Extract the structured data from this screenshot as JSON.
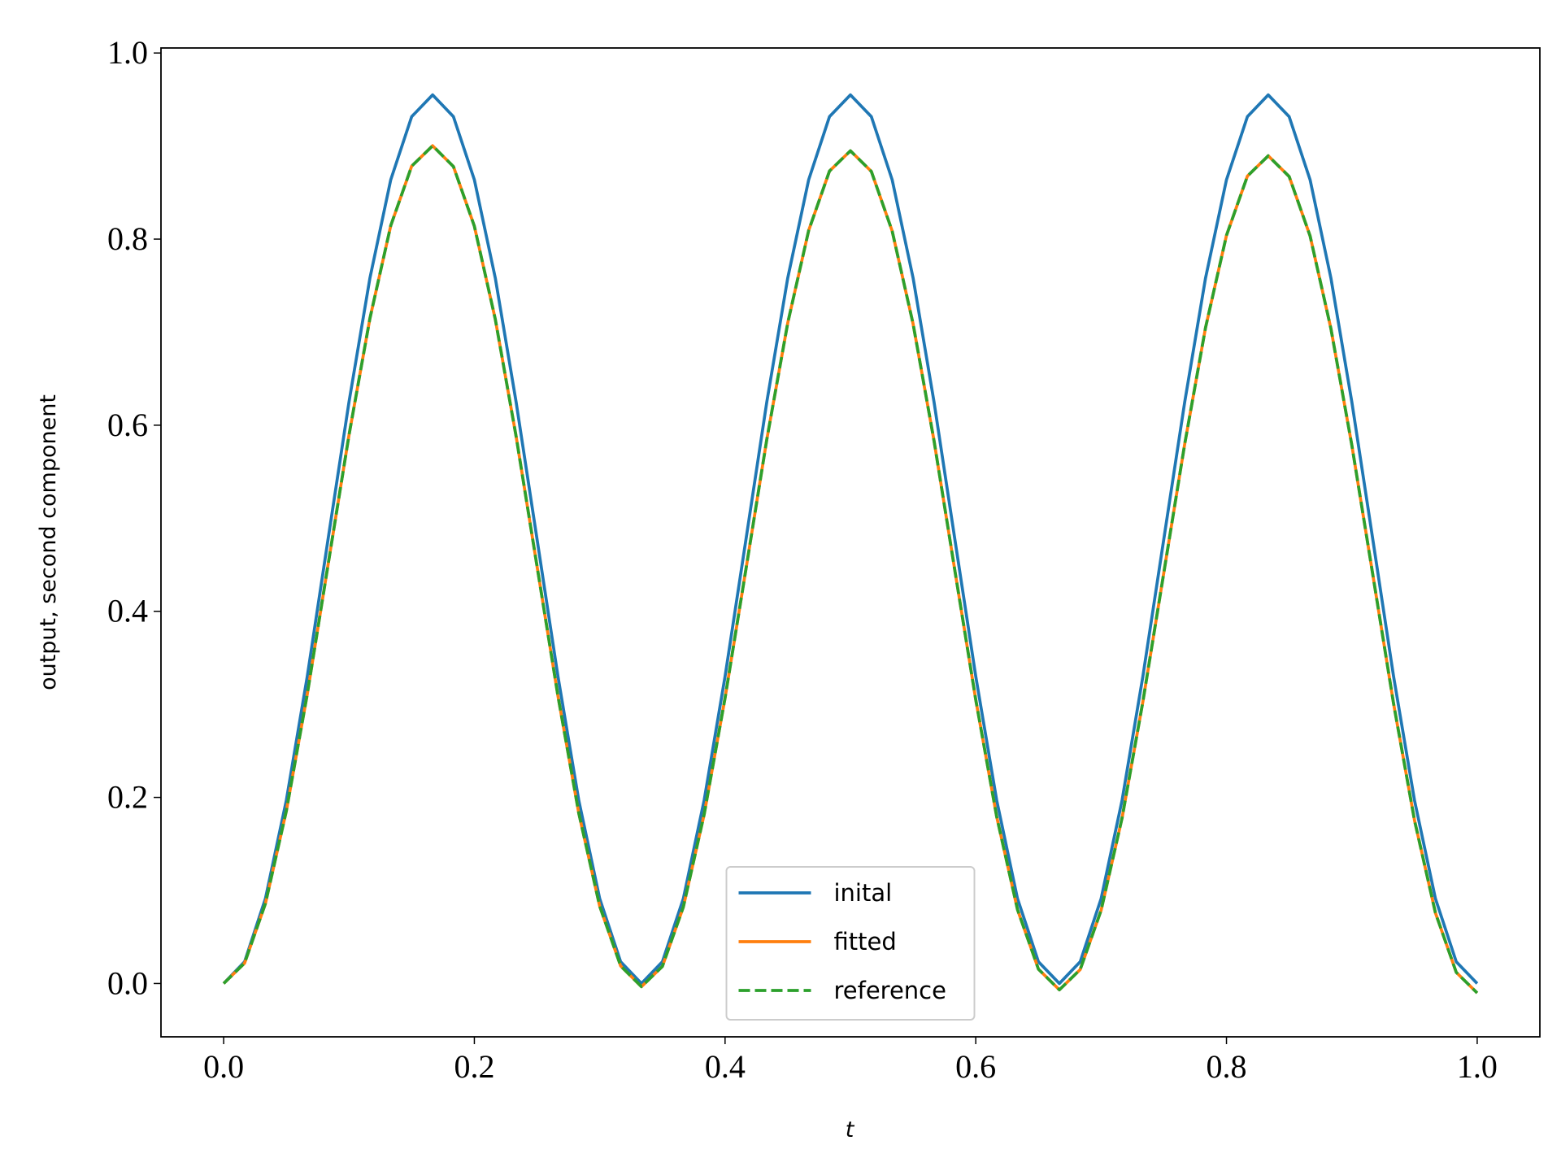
{
  "chart_data": {
    "type": "line",
    "xlabel": "t",
    "ylabel": "output, second component",
    "xlim": [
      -0.05,
      1.05
    ],
    "ylim": [
      -0.0573,
      1.0054
    ],
    "xticks": [
      {
        "value": 0,
        "label": "0.0"
      },
      0.2,
      0.4,
      0.6,
      0.8,
      {
        "value": 1,
        "label": "1.0"
      }
    ],
    "yticks": [
      {
        "value": 0,
        "label": "0.0"
      },
      0.2,
      0.4,
      0.6,
      0.8,
      {
        "value": 1,
        "label": "1.0"
      }
    ],
    "legend": "lower center",
    "x": [
      0,
      0.0167,
      0.0333,
      0.05,
      0.0667,
      0.0833,
      0.1,
      0.1167,
      0.1333,
      0.15,
      0.1667,
      0.1833,
      0.2,
      0.2167,
      0.2333,
      0.25,
      0.2667,
      0.2833,
      0.3,
      0.3167,
      0.3333,
      0.35,
      0.3667,
      0.3833,
      0.4,
      0.4167,
      0.4333,
      0.45,
      0.4667,
      0.4833,
      0.5,
      0.5167,
      0.5333,
      0.55,
      0.5667,
      0.5833,
      0.6,
      0.6167,
      0.6333,
      0.65,
      0.6667,
      0.6833,
      0.7,
      0.7167,
      0.7333,
      0.75,
      0.7667,
      0.7833,
      0.8,
      0.8167,
      0.8333,
      0.85,
      0.8667,
      0.8833,
      0.9,
      0.9167,
      0.9333,
      0.95,
      0.9667,
      0.9833,
      1
    ],
    "series": [
      {
        "name": "inital",
        "color": "#1f77b4",
        "dash": "solid",
        "values": [
          0,
          0.0234,
          0.0912,
          0.1968,
          0.33,
          0.4775,
          0.625,
          0.7582,
          0.8638,
          0.9316,
          0.955,
          0.9316,
          0.8638,
          0.7582,
          0.625,
          0.4775,
          0.33,
          0.1968,
          0.0912,
          0.0234,
          0,
          0.0234,
          0.0912,
          0.1968,
          0.33,
          0.4775,
          0.625,
          0.7582,
          0.8638,
          0.9316,
          0.955,
          0.9316,
          0.8638,
          0.7582,
          0.625,
          0.4775,
          0.33,
          0.1968,
          0.0912,
          0.0234,
          0,
          0.0234,
          0.0912,
          0.1968,
          0.33,
          0.4775,
          0.625,
          0.7582,
          0.8638,
          0.9316,
          0.955,
          0.9316,
          0.8638,
          0.7582,
          0.625,
          0.4775,
          0.33,
          0.1968,
          0.0912,
          0.0234,
          0
        ]
      },
      {
        "name": "fitted",
        "color": "#ff7f0e",
        "dash": "solid",
        "values": [
          0,
          0.0219,
          0.0858,
          0.1854,
          0.3109,
          0.4501,
          0.5894,
          0.7149,
          0.8145,
          0.8784,
          0.9003,
          0.878,
          0.8139,
          0.7139,
          0.588,
          0.4484,
          0.3089,
          0.183,
          0.083,
          0.0189,
          -0.0034,
          0.0184,
          0.0822,
          0.1816,
          0.3069,
          0.4457,
          0.5847,
          0.7099,
          0.8093,
          0.8731,
          0.8949,
          0.8727,
          0.8087,
          0.7089,
          0.5833,
          0.444,
          0.3049,
          0.1792,
          0.0794,
          0.0154,
          -0.0068,
          0.015,
          0.0787,
          0.1778,
          0.3028,
          0.4413,
          0.5799,
          0.7049,
          0.804,
          0.8677,
          0.8895,
          0.8673,
          0.8034,
          0.7039,
          0.5785,
          0.4396,
          0.3008,
          0.1754,
          0.0759,
          0.012,
          -0.0102
        ]
      },
      {
        "name": "reference",
        "color": "#2ca02c",
        "dash": "dashed",
        "values": [
          0,
          0.0219,
          0.0858,
          0.1854,
          0.3109,
          0.4501,
          0.5894,
          0.7149,
          0.8145,
          0.8784,
          0.9003,
          0.878,
          0.8139,
          0.7139,
          0.588,
          0.4484,
          0.3089,
          0.183,
          0.083,
          0.0189,
          -0.0034,
          0.0184,
          0.0822,
          0.1816,
          0.3069,
          0.4457,
          0.5847,
          0.7099,
          0.8093,
          0.8731,
          0.8949,
          0.8727,
          0.8087,
          0.7089,
          0.5833,
          0.444,
          0.3049,
          0.1792,
          0.0794,
          0.0154,
          -0.0068,
          0.015,
          0.0787,
          0.1778,
          0.3028,
          0.4413,
          0.5799,
          0.7049,
          0.804,
          0.8677,
          0.8895,
          0.8673,
          0.8034,
          0.7039,
          0.5785,
          0.4396,
          0.3008,
          0.1754,
          0.0759,
          0.012,
          -0.0102
        ]
      }
    ]
  }
}
